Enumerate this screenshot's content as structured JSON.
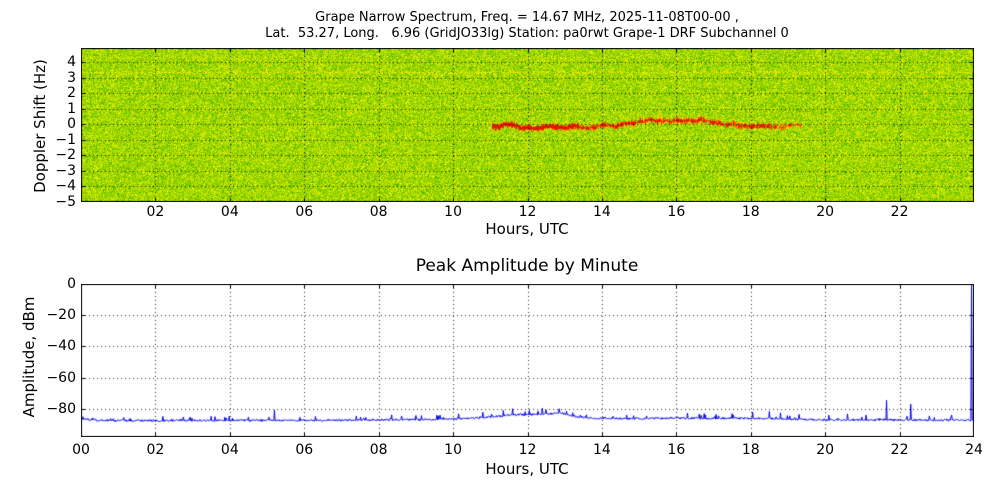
{
  "figure": {
    "background": "#ffffff",
    "grid_color": "#000000",
    "frame_color": "#000000"
  },
  "chart_data": [
    {
      "type": "heatmap",
      "name": "doppler-spectrogram",
      "title_line1": "Grape Narrow Spectrum, Freq. = 14.67 MHz, 2025-11-08T00-00 ,",
      "title_line2": "Lat.  53.27, Long.   6.96 (GridJO33lg) Station: pa0rwt Grape-1 DRF Subchannel 0",
      "xlabel": "Hours, UTC",
      "ylabel": "Doppler Shift (Hz)",
      "xlim": [
        0,
        24
      ],
      "ylim": [
        -5.0,
        4.9
      ],
      "xticks": [
        2,
        4,
        6,
        8,
        10,
        12,
        14,
        16,
        18,
        20,
        22
      ],
      "xtick_labels": [
        "02",
        "04",
        "06",
        "08",
        "10",
        "12",
        "14",
        "16",
        "18",
        "20",
        "22"
      ],
      "yticks": [
        4,
        3,
        2,
        1,
        0,
        -1,
        -2,
        -3,
        -4,
        -5
      ],
      "ytick_labels": [
        "4",
        "3",
        "2",
        "1",
        "0",
        "−1",
        "−2",
        "−3",
        "−4",
        "−5"
      ],
      "grid": true,
      "noise_palette": [
        {
          "color": "#4db400",
          "weight": 0.1
        },
        {
          "color": "#74c600",
          "weight": 0.2
        },
        {
          "color": "#99d400",
          "weight": 0.26
        },
        {
          "color": "#bce200",
          "weight": 0.24
        },
        {
          "color": "#d9ec00",
          "weight": 0.14
        },
        {
          "color": "#eef400",
          "weight": 0.06
        }
      ],
      "signal_trace": {
        "description": "Daytime Doppler trace near 0 Hz, strongest flaring 11:30-13:00 UTC, fading out ~19:20 UTC",
        "center_hz": -0.1,
        "start_hour": 11.05,
        "end_hour": 19.35,
        "typical_width_hz": 0.5,
        "flare_region_end_t": 0.28,
        "colors": [
          "#ffdc00",
          "#ffb300",
          "#ff8000",
          "#f54400",
          "#dd1800"
        ]
      },
      "interference_bands": [
        {
          "hz": 3.35,
          "strength": 0.45,
          "color": "#e6e600"
        },
        {
          "hz": 4.35,
          "strength": 0.2,
          "color": "#dce600"
        }
      ]
    },
    {
      "type": "line",
      "name": "peak-amplitude",
      "title": "Peak Amplitude by Minute",
      "xlabel": "Hours, UTC",
      "ylabel": "Amplitude, dBm",
      "xlim": [
        0,
        24
      ],
      "ylim": [
        -98,
        0
      ],
      "xticks": [
        0,
        2,
        4,
        6,
        8,
        10,
        12,
        14,
        16,
        18,
        20,
        22,
        24
      ],
      "xtick_labels": [
        "00",
        "02",
        "04",
        "06",
        "08",
        "10",
        "12",
        "14",
        "16",
        "18",
        "20",
        "22",
        "24"
      ],
      "yticks": [
        0,
        -20,
        -40,
        -60,
        -80
      ],
      "ytick_labels": [
        "0",
        "−20",
        "−40",
        "−60",
        "−80"
      ],
      "grid": true,
      "series": [
        {
          "name": "peak amplitude per minute",
          "color": "#0000e8",
          "noise_dbm": 1.3,
          "points_per_hour": 60,
          "envelope": [
            [
              0,
              -86.5
            ],
            [
              0.5,
              -87.3
            ],
            [
              1,
              -87.5
            ],
            [
              2,
              -87.5
            ],
            [
              3,
              -87.4
            ],
            [
              4,
              -87.4
            ],
            [
              5,
              -87.3
            ],
            [
              6,
              -87.3
            ],
            [
              7,
              -87.2
            ],
            [
              8,
              -87.0
            ],
            [
              9,
              -86.9
            ],
            [
              10,
              -86.6
            ],
            [
              10.5,
              -86.0
            ],
            [
              11,
              -85.2
            ],
            [
              11.5,
              -84.0
            ],
            [
              12,
              -83.6
            ],
            [
              12.5,
              -83.2
            ],
            [
              12.9,
              -82.6
            ],
            [
              13.2,
              -84.5
            ],
            [
              13.5,
              -85.6
            ],
            [
              14,
              -86.0
            ],
            [
              15,
              -86.2
            ],
            [
              16,
              -85.9
            ],
            [
              17,
              -86.0
            ],
            [
              18,
              -86.0
            ],
            [
              18.7,
              -86.3
            ],
            [
              19.5,
              -86.9
            ],
            [
              20,
              -87.0
            ],
            [
              21,
              -87.0
            ],
            [
              22,
              -87.1
            ],
            [
              23,
              -87.2
            ],
            [
              23.9,
              -87.2
            ],
            [
              24,
              -87.0
            ]
          ],
          "spikes": [
            [
              0.05,
              -85.0
            ],
            [
              1.15,
              -85.5
            ],
            [
              2.2,
              -84.8
            ],
            [
              3.6,
              -85.0
            ],
            [
              4.5,
              -85.2
            ],
            [
              5.2,
              -80.8
            ],
            [
              6.3,
              -84.8
            ],
            [
              7.4,
              -84.6
            ],
            [
              8.35,
              -83.8
            ],
            [
              9.0,
              -84.2
            ],
            [
              9.6,
              -84.5
            ],
            [
              10.15,
              -83.2
            ],
            [
              10.8,
              -82.2
            ],
            [
              11.35,
              -81.0
            ],
            [
              11.6,
              -79.9
            ],
            [
              12.05,
              -81.0
            ],
            [
              12.4,
              -79.6
            ],
            [
              12.85,
              -79.9
            ],
            [
              13.05,
              -81.5
            ],
            [
              14.3,
              -84.8
            ],
            [
              15.2,
              -84.5
            ],
            [
              16.3,
              -82.6
            ],
            [
              16.75,
              -83.0
            ],
            [
              17.5,
              -83.0
            ],
            [
              18.05,
              -82.0
            ],
            [
              18.5,
              -81.6
            ],
            [
              18.8,
              -82.5
            ],
            [
              19.3,
              -83.5
            ],
            [
              20.1,
              -84.0
            ],
            [
              20.6,
              -83.2
            ],
            [
              21.1,
              -84.0
            ],
            [
              21.65,
              -74.5
            ],
            [
              22.3,
              -77.0
            ],
            [
              22.8,
              -84.5
            ],
            [
              23.4,
              -84.0
            ],
            [
              23.93,
              -0.8
            ]
          ]
        }
      ]
    }
  ]
}
